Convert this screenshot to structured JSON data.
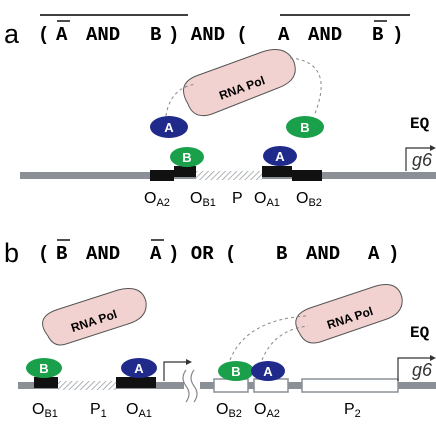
{
  "panel_a": {
    "letter": "a",
    "expr": [
      "(A AND B) AND (A AND B)"
    ],
    "expr_parts": {
      "open": "(",
      "a1": "A",
      "and1": "AND",
      "b1": "B",
      "mid": ") AND (",
      "a2": "A",
      "and2": "AND",
      "b2": "B",
      "close": ")"
    },
    "rna_pol": "RNA Pol",
    "protein_a_left": "A",
    "protein_b_right": "B",
    "protein_b_bound": "B",
    "protein_a_bound": "A",
    "reporter_top": "EQ",
    "reporter_gene": "g6",
    "site_oa2": "O",
    "site_oa2_sub": "A2",
    "site_ob1": "O",
    "site_ob1_sub": "B1",
    "site_p": "P",
    "site_oa1": "O",
    "site_oa1_sub": "A1",
    "site_ob2": "O",
    "site_ob2_sub": "B2"
  },
  "panel_b": {
    "letter": "b",
    "expr_parts": {
      "open": "(",
      "b1": "B",
      "and1": "AND",
      "a1": "A",
      "mid": ") OR (",
      "b2": "B",
      "and2": "AND",
      "a2": "A",
      "close": ")"
    },
    "rna_pol_left": "RNA Pol",
    "rna_pol_right": "RNA Pol",
    "protein_b_left": "B",
    "protein_a_left": "A",
    "protein_b_right": "B",
    "protein_a_right": "A",
    "reporter_top": "EQ",
    "reporter_gene": "g6",
    "site_ob1": "O",
    "site_ob1_sub": "B1",
    "site_p1": "P",
    "site_p1_sub": "1",
    "site_oa1": "O",
    "site_oa1_sub": "A1",
    "site_ob2": "O",
    "site_ob2_sub": "B2",
    "site_oa2": "O",
    "site_oa2_sub": "A2",
    "site_p2": "P",
    "site_p2_sub": "2"
  },
  "colors": {
    "dna": "#8a9096",
    "operator": "#111111",
    "protein_a": "#1f2a8a",
    "protein_b": "#1aa04a",
    "rna_pol_fill": "#f2d2d0",
    "hatch": "#9aa0a6"
  }
}
